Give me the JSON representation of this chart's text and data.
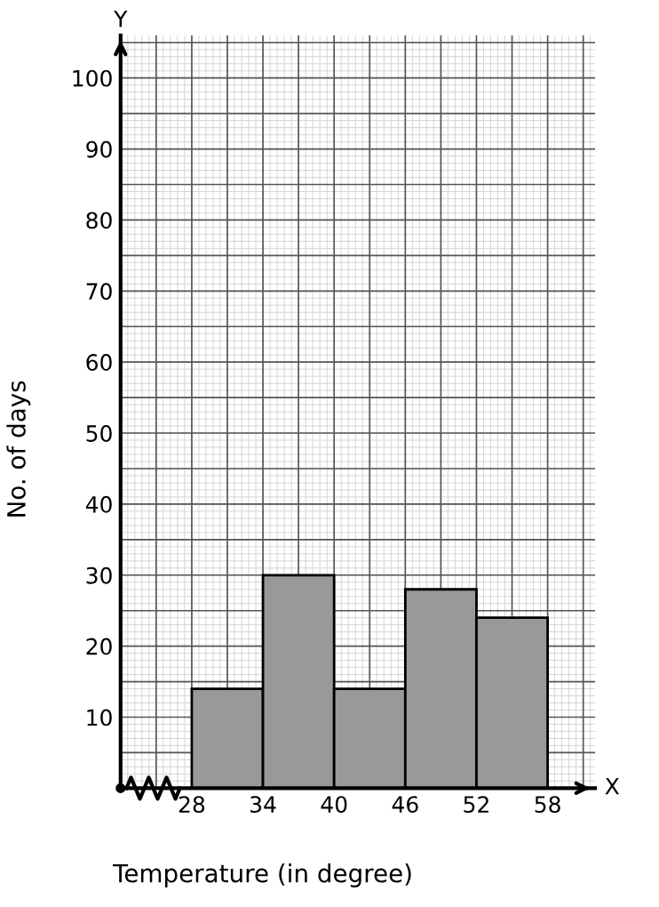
{
  "chart_data": {
    "type": "histogram",
    "xlabel": "Temperature (in degree)",
    "ylabel": "No. of days",
    "bins": [
      28,
      34,
      40,
      46,
      52,
      58
    ],
    "values": [
      14,
      30,
      14,
      28,
      24
    ],
    "color": "#999999",
    "xlim": [
      22,
      62
    ],
    "ylim": [
      0,
      106
    ],
    "xticks": [
      28,
      34,
      40,
      46,
      52,
      58
    ],
    "yticks": [
      10,
      20,
      30,
      40,
      50,
      60,
      70,
      80,
      90,
      100
    ],
    "grid": true,
    "annotations": [
      "Y",
      "X"
    ]
  }
}
